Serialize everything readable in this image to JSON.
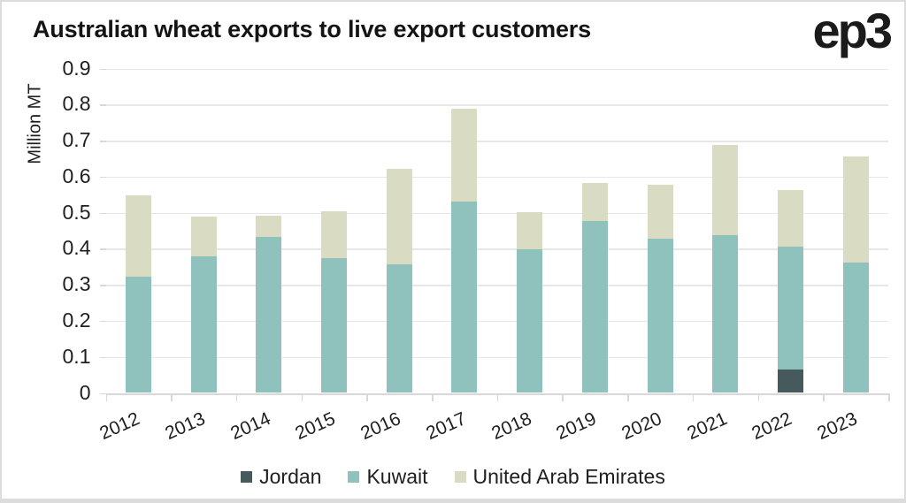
{
  "header": {
    "title": "Australian wheat exports to live export customers",
    "logo": "ep3"
  },
  "colors": {
    "background": "#ffffff",
    "frame": "#dcdcdc",
    "grid": "#e7e7e7",
    "axis": "#d8d8d8",
    "text": "#1f1f1f",
    "jordan": "#465a5e",
    "kuwait": "#8fc1bd",
    "uae": "#d9dcc3"
  },
  "chart_data": {
    "type": "bar",
    "stacked": true,
    "title": "Australian wheat exports to live export customers",
    "xlabel": "",
    "ylabel": "Million MT",
    "ylim": [
      0,
      0.9
    ],
    "grid": true,
    "legend_position": "bottom",
    "yticks": [
      "0.9",
      "0.8",
      "0.7",
      "0.6",
      "0.5",
      "0.4",
      "0.3",
      "0.2",
      "0.1",
      "0"
    ],
    "categories": [
      "2012",
      "2013",
      "2014",
      "2015",
      "2016",
      "2017",
      "2018",
      "2019",
      "2020",
      "2021",
      "2022",
      "2023"
    ],
    "series": [
      {
        "name": "Jordan",
        "color": "#465a5e",
        "values": [
          0,
          0,
          0,
          0,
          0,
          0,
          0,
          0,
          0,
          0,
          0.064,
          0
        ]
      },
      {
        "name": "Kuwait",
        "color": "#8fc1bd",
        "values": [
          0.323,
          0.378,
          0.432,
          0.375,
          0.358,
          0.532,
          0.398,
          0.478,
          0.427,
          0.438,
          0.343,
          0.362
        ]
      },
      {
        "name": "United Arab Emirates",
        "color": "#d9dcc3",
        "values": [
          0.225,
          0.112,
          0.059,
          0.13,
          0.265,
          0.257,
          0.103,
          0.104,
          0.15,
          0.25,
          0.156,
          0.295
        ]
      }
    ],
    "totals": [
      0.548,
      0.49,
      0.491,
      0.505,
      0.623,
      0.789,
      0.501,
      0.582,
      0.577,
      0.688,
      0.563,
      0.657
    ]
  }
}
